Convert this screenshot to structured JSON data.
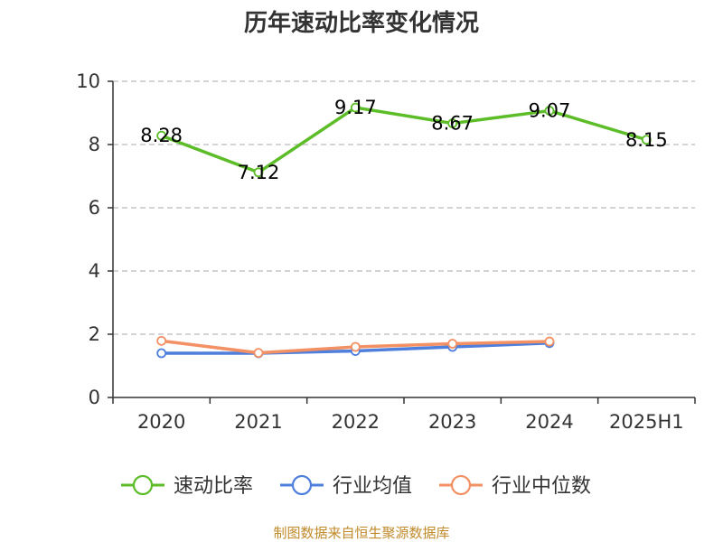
{
  "chart_data": {
    "type": "line",
    "title": "历年速动比率变化情况",
    "categories": [
      "2020",
      "2021",
      "2022",
      "2023",
      "2024",
      "2025H1"
    ],
    "ylim": [
      0,
      10
    ],
    "yticks": [
      "0",
      "2",
      "4",
      "6",
      "8",
      "10"
    ],
    "grid": true,
    "legend_position": "bottom",
    "series": [
      {
        "name": "速动比率",
        "color": "#5cbd28",
        "values": [
          8.28,
          7.12,
          9.17,
          8.67,
          9.07,
          8.15
        ],
        "labels": [
          "8.28",
          "7.12",
          "9.17",
          "8.67",
          "9.07",
          "8.15"
        ]
      },
      {
        "name": "行业均值",
        "color": "#4f7fdc",
        "values": [
          1.4,
          1.4,
          1.47,
          1.6,
          1.72,
          null
        ]
      },
      {
        "name": "行业中位数",
        "color": "#f39064",
        "values": [
          1.79,
          1.41,
          1.6,
          1.7,
          1.77,
          null
        ]
      }
    ]
  },
  "source": "制图数据来自恒生聚源数据库"
}
